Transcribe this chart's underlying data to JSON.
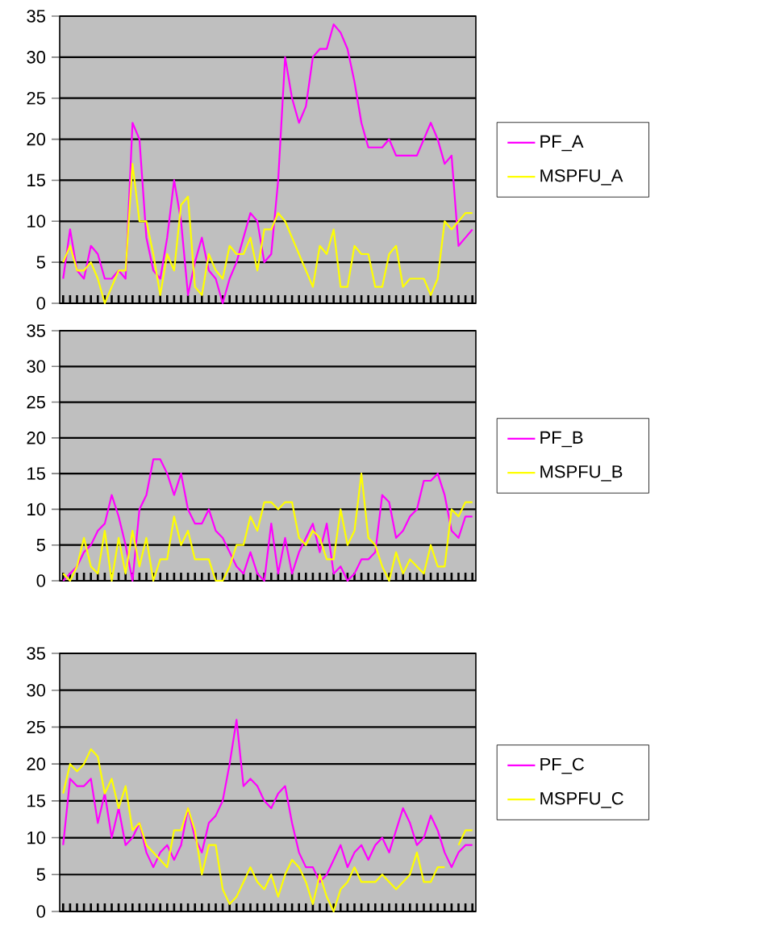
{
  "chart_data": [
    {
      "type": "line",
      "categories": [
        null,
        null,
        null,
        null,
        null,
        null,
        null,
        null,
        null,
        null,
        null,
        null,
        null,
        null,
        null,
        null,
        null,
        null,
        null,
        null,
        null,
        null,
        null,
        null,
        null,
        null,
        null,
        null,
        null,
        null,
        null,
        null,
        null,
        null,
        null,
        null,
        null,
        null,
        null,
        null,
        null,
        null,
        null,
        null,
        null,
        null,
        null,
        null,
        null,
        null,
        null,
        null,
        null,
        null,
        null,
        null,
        null,
        null,
        null,
        null
      ],
      "series": [
        {
          "name": "PF_A",
          "color": "#ff00ff",
          "values": [
            3,
            9,
            4,
            3,
            7,
            6,
            3,
            3,
            4,
            3,
            22,
            20,
            8,
            4,
            3,
            8,
            15,
            10,
            1,
            5,
            8,
            4,
            3,
            0,
            3,
            5,
            8,
            11,
            10,
            5,
            6,
            15,
            30,
            25,
            22,
            24,
            30,
            31,
            31,
            34,
            33,
            31,
            27,
            22,
            19,
            19,
            19,
            20,
            18,
            18,
            18,
            18,
            20,
            22,
            20,
            17,
            18,
            7,
            8,
            9
          ]
        },
        {
          "name": "MSPFU_A",
          "color": "#ffff00",
          "values": [
            5,
            7,
            4,
            4,
            5,
            3,
            0,
            2,
            4,
            4,
            17,
            10,
            10,
            6,
            1,
            6,
            4,
            12,
            13,
            2,
            1,
            6,
            4,
            3,
            7,
            6,
            6,
            8,
            4,
            9,
            9,
            11,
            10,
            8,
            6,
            4,
            2,
            7,
            6,
            9,
            2,
            2,
            7,
            6,
            6,
            2,
            2,
            6,
            7,
            2,
            3,
            3,
            3,
            1,
            3,
            10,
            9,
            10,
            11,
            11
          ]
        }
      ],
      "ylim": [
        0,
        35
      ],
      "yticks": [
        0,
        5,
        10,
        15,
        20,
        25,
        30,
        35
      ],
      "grid": "y",
      "legend": "right",
      "tick_labels": "y"
    },
    {
      "type": "line",
      "categories": [
        null,
        null,
        null,
        null,
        null,
        null,
        null,
        null,
        null,
        null,
        null,
        null,
        null,
        null,
        null,
        null,
        null,
        null,
        null,
        null,
        null,
        null,
        null,
        null,
        null,
        null,
        null,
        null,
        null,
        null,
        null,
        null,
        null,
        null,
        null,
        null,
        null,
        null,
        null,
        null,
        null,
        null,
        null,
        null,
        null,
        null,
        null,
        null,
        null,
        null,
        null,
        null,
        null,
        null,
        null,
        null,
        null,
        null,
        null,
        null
      ],
      "series": [
        {
          "name": "PF_B",
          "color": "#ff00ff",
          "values": [
            0,
            1,
            2,
            4,
            5,
            7,
            8,
            12,
            9,
            5,
            0,
            10,
            12,
            17,
            17,
            15,
            12,
            15,
            10,
            8,
            8,
            10,
            7,
            6,
            4,
            2,
            1,
            4,
            1,
            0,
            8,
            1,
            6,
            1,
            4,
            6,
            8,
            4,
            8,
            1,
            2,
            0,
            1,
            3,
            3,
            4,
            12,
            11,
            6,
            7,
            9,
            10,
            14,
            14,
            15,
            12,
            7,
            6,
            9,
            9
          ]
        },
        {
          "name": "MSPFU_B",
          "color": "#ffff00",
          "values": [
            1,
            0,
            2,
            6,
            2,
            1,
            7,
            0,
            6,
            1,
            7,
            2,
            6,
            0,
            3,
            3,
            9,
            5,
            7,
            3,
            3,
            3,
            0,
            0,
            2,
            5,
            5,
            9,
            7,
            11,
            11,
            10,
            11,
            11,
            6,
            5,
            7,
            6,
            3,
            3,
            10,
            5,
            7,
            15,
            6,
            5,
            2,
            0,
            4,
            1,
            3,
            2,
            1,
            5,
            2,
            2,
            10,
            9,
            11,
            11
          ]
        }
      ],
      "ylim": [
        0,
        35
      ],
      "yticks": [
        0,
        5,
        10,
        15,
        20,
        25,
        30,
        35
      ],
      "grid": "y",
      "legend": "right",
      "tick_labels": "y"
    },
    {
      "type": "line",
      "categories": [
        null,
        null,
        null,
        null,
        null,
        null,
        null,
        null,
        null,
        null,
        null,
        null,
        null,
        null,
        null,
        null,
        null,
        null,
        null,
        null,
        null,
        null,
        null,
        null,
        null,
        null,
        null,
        null,
        null,
        null,
        null,
        null,
        null,
        null,
        null,
        null,
        null,
        null,
        null,
        null,
        null,
        null,
        null,
        null,
        null,
        null,
        null,
        null,
        null,
        null,
        null,
        null,
        null,
        null,
        null,
        null,
        null,
        null,
        null,
        null
      ],
      "series": [
        {
          "name": "PF_C",
          "color": "#ff00ff",
          "values": [
            9,
            18,
            17,
            17,
            18,
            12,
            16,
            10,
            14,
            9,
            10,
            12,
            8,
            6,
            8,
            9,
            7,
            9,
            14,
            10,
            8,
            12,
            13,
            15,
            20,
            26,
            17,
            18,
            17,
            15,
            14,
            16,
            17,
            12,
            8,
            6,
            6,
            4,
            5,
            7,
            9,
            6,
            8,
            9,
            7,
            9,
            10,
            8,
            11,
            14,
            12,
            9,
            10,
            13,
            11,
            8,
            6,
            8,
            9,
            9
          ]
        },
        {
          "name": "MSPFU_C",
          "color": "#ffff00",
          "values": [
            16,
            20,
            19,
            20,
            22,
            21,
            16,
            18,
            14,
            17,
            11,
            12,
            9,
            8,
            7,
            6,
            11,
            11,
            14,
            11,
            5,
            9,
            9,
            3,
            1,
            2,
            4,
            6,
            4,
            3,
            5,
            2,
            5,
            7,
            6,
            4,
            1,
            5,
            2,
            0,
            3,
            4,
            6,
            4,
            4,
            4,
            5,
            4,
            3,
            4,
            5,
            8,
            4,
            4,
            6,
            6,
            null,
            9,
            11,
            11
          ]
        }
      ],
      "ylim": [
        0,
        35
      ],
      "yticks": [
        0,
        5,
        10,
        15,
        20,
        25,
        30,
        35
      ],
      "grid": "y",
      "legend": "right",
      "tick_labels": "y"
    }
  ]
}
